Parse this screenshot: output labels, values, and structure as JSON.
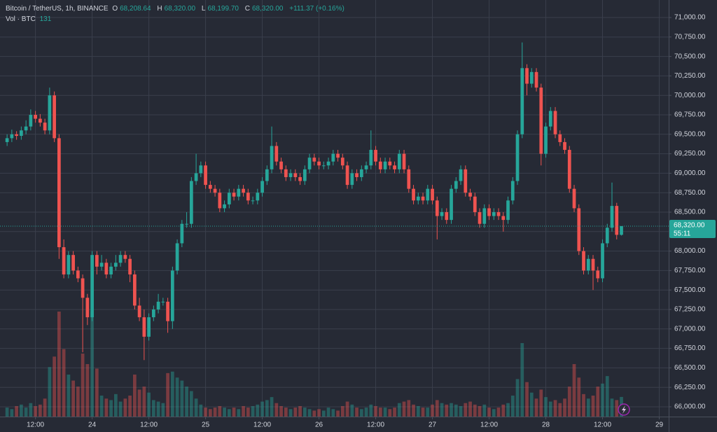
{
  "chart_data": {
    "type": "candlestick",
    "title": "Bitcoin / TetherUS, 1h, BINANCE",
    "ohlc_legend": [
      {
        "label": "O",
        "value": "68,208.64"
      },
      {
        "label": "H",
        "value": "68,320.00"
      },
      {
        "label": "L",
        "value": "68,199.70"
      },
      {
        "label": "C",
        "value": "68,320.00"
      }
    ],
    "change": "+111.37 (+0.16%)",
    "volume_title": "Vol · BTC",
    "volume_value": 131,
    "last_price_label": "68,320.00",
    "countdown": "55:11",
    "up_color": "#26a69a",
    "down_color": "#ef5350",
    "grid": true,
    "xlim": [
      -1.5,
      140
    ],
    "xticks": [
      {
        "value": 6,
        "label": "12:00"
      },
      {
        "value": 18,
        "label": "24"
      },
      {
        "value": 30,
        "label": "12:00"
      },
      {
        "value": 42,
        "label": "25"
      },
      {
        "value": 54,
        "label": "12:00"
      },
      {
        "value": 66,
        "label": "26"
      },
      {
        "value": 78,
        "label": "12:00"
      },
      {
        "value": 90,
        "label": "27"
      },
      {
        "value": 102,
        "label": "12:00"
      },
      {
        "value": 114,
        "label": "28"
      },
      {
        "value": 126,
        "label": "12:00"
      },
      {
        "value": 138,
        "label": "29"
      }
    ],
    "ylim": [
      65874,
      71225
    ],
    "yticks": [
      {
        "value": 66000,
        "label": "66,000.00"
      },
      {
        "value": 66250,
        "label": "66,250.00"
      },
      {
        "value": 66500,
        "label": "66,500.00"
      },
      {
        "value": 66750,
        "label": "66,750.00"
      },
      {
        "value": 67000,
        "label": "67,000.00"
      },
      {
        "value": 67250,
        "label": "67,250.00"
      },
      {
        "value": 67500,
        "label": "67,500.00"
      },
      {
        "value": 67750,
        "label": "67,750.00"
      },
      {
        "value": 68000,
        "label": "68,000.00"
      },
      {
        "value": 68250,
        "label": "68,250.00"
      },
      {
        "value": 68500,
        "label": "68,500.00"
      },
      {
        "value": 68750,
        "label": "68,750.00"
      },
      {
        "value": 69000,
        "label": "69,000.00"
      },
      {
        "value": 69250,
        "label": "69,250.00"
      },
      {
        "value": 69500,
        "label": "69,500.00"
      },
      {
        "value": 69750,
        "label": "69,750.00"
      },
      {
        "value": 70000,
        "label": "70,000.00"
      },
      {
        "value": 70250,
        "label": "70,250.00"
      },
      {
        "value": 70500,
        "label": "70,500.00"
      },
      {
        "value": 70750,
        "label": "70,750.00"
      },
      {
        "value": 71000,
        "label": "71,000.00"
      }
    ],
    "open": [
      69400,
      69450,
      69500,
      69480,
      69550,
      69600,
      69750,
      69700,
      69650,
      69550,
      70000,
      69450,
      68050,
      67700,
      67950,
      67750,
      67650,
      67400,
      67150,
      67950,
      67800,
      67850,
      67700,
      67800,
      67850,
      67950,
      67900,
      67700,
      67300,
      67150,
      66900,
      67150,
      67250,
      67350,
      67350,
      67100,
      67750,
      68100,
      68350,
      68350,
      68900,
      69000,
      69100,
      68850,
      68800,
      68750,
      68550,
      68600,
      68750,
      68700,
      68800,
      68750,
      68650,
      68650,
      68750,
      68900,
      69050,
      69350,
      69150,
      69050,
      68950,
      69000,
      68950,
      68900,
      69050,
      69200,
      69150,
      69100,
      69100,
      69150,
      69250,
      69200,
      69100,
      68850,
      69000,
      68950,
      69050,
      69100,
      69300,
      69150,
      69050,
      69150,
      69100,
      69050,
      69250,
      69050,
      68800,
      68650,
      68700,
      68650,
      68800,
      68650,
      68450,
      68500,
      68400,
      68800,
      68900,
      69050,
      68750,
      68700,
      68500,
      68350,
      68550,
      68450,
      68500,
      68450,
      68400,
      68650,
      68900,
      69500,
      70350,
      70150,
      70300,
      70100,
      69250,
      69600,
      69800,
      69500,
      69400,
      69300,
      68800,
      68550,
      68000,
      67750,
      67900,
      67750,
      67650,
      68100,
      68300,
      68580,
      68208.64
    ],
    "high": [
      69500,
      69560,
      69540,
      69600,
      69680,
      69820,
      69800,
      69760,
      69700,
      70100,
      70050,
      69500,
      68150,
      68000,
      68000,
      67800,
      67700,
      67450,
      68000,
      68000,
      67950,
      67900,
      67850,
      67950,
      68000,
      68000,
      67950,
      67750,
      67400,
      67250,
      67200,
      67300,
      67450,
      67400,
      67400,
      67800,
      68150,
      68400,
      68500,
      68950,
      69250,
      69150,
      69150,
      68900,
      68850,
      68800,
      68650,
      68800,
      68800,
      68850,
      68850,
      68800,
      68700,
      68800,
      68950,
      69100,
      69600,
      69400,
      69200,
      69100,
      69050,
      69050,
      69000,
      69100,
      69250,
      69250,
      69200,
      69150,
      69200,
      69300,
      69300,
      69250,
      69150,
      69050,
      69050,
      69100,
      69150,
      69550,
      69350,
      69200,
      69200,
      69200,
      69150,
      69300,
      69300,
      69100,
      68850,
      68750,
      68750,
      68850,
      68850,
      68700,
      68550,
      68550,
      68850,
      68950,
      69100,
      69100,
      68800,
      68750,
      68550,
      68600,
      68600,
      68550,
      68550,
      68500,
      68700,
      68950,
      69550,
      70680,
      70400,
      70350,
      70350,
      70150,
      69650,
      69850,
      69850,
      69550,
      69450,
      69350,
      68850,
      68600,
      68050,
      67950,
      67950,
      67800,
      68150,
      68350,
      68880,
      68620,
      68320
    ],
    "low": [
      69350,
      69400,
      69430,
      69430,
      69500,
      69550,
      69650,
      69600,
      69500,
      69500,
      69400,
      67900,
      67650,
      67650,
      67700,
      67600,
      66700,
      67050,
      67100,
      67700,
      67750,
      67650,
      67650,
      67750,
      67800,
      67850,
      67600,
      67250,
      67100,
      66600,
      66850,
      67100,
      67200,
      67300,
      66950,
      67000,
      67700,
      68050,
      68300,
      68300,
      68850,
      68950,
      68800,
      68750,
      68700,
      68500,
      68500,
      68550,
      68650,
      68650,
      68700,
      68600,
      68600,
      68600,
      68700,
      68850,
      69000,
      69100,
      69000,
      68900,
      68900,
      68900,
      68850,
      68850,
      69000,
      69100,
      69050,
      69050,
      69050,
      69100,
      69150,
      69050,
      68800,
      68800,
      68900,
      68900,
      69000,
      69050,
      69100,
      69000,
      69000,
      69050,
      69000,
      69000,
      69000,
      68750,
      68600,
      68600,
      68600,
      68600,
      68600,
      68150,
      68400,
      68350,
      68350,
      68750,
      68850,
      68700,
      68650,
      68450,
      68300,
      68300,
      68400,
      68400,
      68400,
      68250,
      68350,
      68600,
      68850,
      69450,
      70000,
      70100,
      70050,
      69100,
      69200,
      69550,
      69450,
      69350,
      69250,
      68750,
      68500,
      67950,
      67700,
      67700,
      67500,
      67600,
      67600,
      68050,
      68250,
      68150,
      68199.7
    ],
    "close": [
      69450,
      69500,
      69480,
      69550,
      69600,
      69750,
      69700,
      69650,
      69550,
      70000,
      69450,
      68050,
      67700,
      67950,
      67750,
      67650,
      67400,
      67150,
      67950,
      67800,
      67850,
      67700,
      67800,
      67850,
      67950,
      67900,
      67700,
      67300,
      67150,
      66900,
      67150,
      67250,
      67350,
      67350,
      67100,
      67750,
      68100,
      68350,
      68350,
      68900,
      69000,
      69100,
      68850,
      68800,
      68750,
      68550,
      68600,
      68750,
      68700,
      68800,
      68750,
      68650,
      68650,
      68750,
      68900,
      69050,
      69350,
      69150,
      69050,
      68950,
      69000,
      68950,
      68900,
      69050,
      69200,
      69150,
      69100,
      69100,
      69150,
      69250,
      69200,
      69100,
      68850,
      69000,
      68950,
      69050,
      69100,
      69300,
      69150,
      69050,
      69150,
      69100,
      69050,
      69250,
      69050,
      68800,
      68650,
      68700,
      68650,
      68800,
      68650,
      68450,
      68500,
      68400,
      68800,
      68900,
      69050,
      68750,
      68700,
      68500,
      68350,
      68550,
      68450,
      68500,
      68450,
      68400,
      68650,
      68900,
      69500,
      70350,
      70150,
      70300,
      70100,
      69250,
      69600,
      69800,
      69500,
      69400,
      69300,
      68800,
      68550,
      68000,
      67750,
      67900,
      67750,
      67650,
      68100,
      68300,
      68580,
      68208.64,
      68320
    ],
    "volume": [
      60,
      50,
      70,
      80,
      60,
      90,
      70,
      80,
      120,
      330,
      400,
      700,
      450,
      280,
      240,
      200,
      420,
      350,
      700,
      320,
      140,
      120,
      110,
      150,
      100,
      120,
      140,
      280,
      180,
      200,
      160,
      110,
      100,
      90,
      290,
      300,
      260,
      240,
      200,
      170,
      120,
      80,
      60,
      50,
      60,
      70,
      60,
      50,
      60,
      50,
      70,
      60,
      70,
      80,
      100,
      110,
      130,
      90,
      70,
      60,
      50,
      60,
      70,
      60,
      50,
      40,
      50,
      40,
      60,
      50,
      40,
      70,
      100,
      80,
      60,
      50,
      60,
      80,
      70,
      60,
      60,
      50,
      60,
      90,
      100,
      110,
      80,
      70,
      60,
      60,
      80,
      110,
      90,
      80,
      90,
      80,
      70,
      90,
      100,
      80,
      70,
      80,
      60,
      50,
      60,
      80,
      90,
      140,
      250,
      490,
      230,
      160,
      120,
      180,
      130,
      100,
      110,
      90,
      120,
      200,
      350,
      260,
      150,
      120,
      140,
      200,
      220,
      270,
      120,
      110,
      131
    ]
  }
}
